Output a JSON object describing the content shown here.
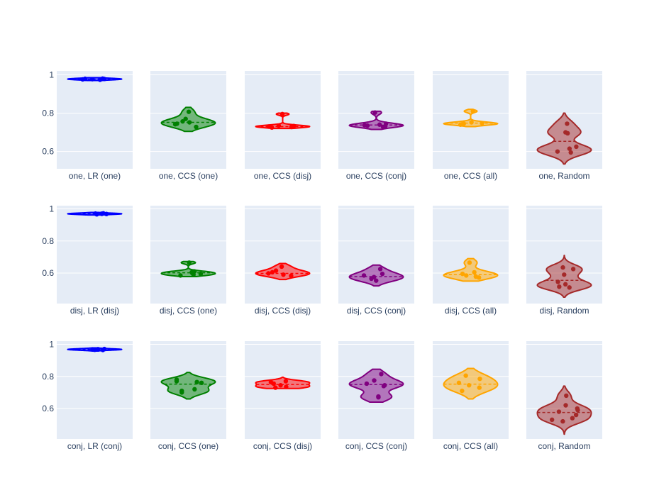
{
  "chart_data": {
    "type": "violin",
    "grid": true,
    "background_color": "#e5ecf6",
    "rows": [
      {
        "yticks": [
          0.6,
          0.8,
          1
        ],
        "ytick_labels": [
          "0.6",
          "0.8",
          "1"
        ],
        "ylim": [
          0.51,
          1.02
        ],
        "panels": [
          {
            "label": "one, LR (one)",
            "color": "#0000ff",
            "points": [
              0.974,
              0.976,
              0.977,
              0.978,
              0.979,
              0.98
            ],
            "mean": 0.977,
            "kde_range": [
              0.97,
              0.985
            ],
            "bw": 0.004
          },
          {
            "label": "one, CCS (one)",
            "color": "#008000",
            "points": [
              0.807,
              0.77,
              0.757,
              0.752,
              0.745,
              0.742,
              0.728
            ],
            "mean": 0.752,
            "kde_range": [
              0.705,
              0.83
            ],
            "bw": 0.018
          },
          {
            "label": "one, CCS (disj)",
            "color": "#ff0000",
            "points": [
              0.795,
              0.735,
              0.733,
              0.73,
              0.728,
              0.725
            ],
            "mean": 0.73,
            "kde_range": [
              0.72,
              0.8
            ],
            "bw": 0.006
          },
          {
            "label": "one, CCS (conj)",
            "color": "#800080",
            "points": [
              0.803,
              0.745,
              0.74,
              0.737,
              0.735,
              0.732,
              0.728
            ],
            "mean": 0.738,
            "kde_range": [
              0.715,
              0.81
            ],
            "bw": 0.01
          },
          {
            "label": "one, CCS (all)",
            "color": "#ffa500",
            "points": [
              0.81,
              0.752,
              0.748,
              0.745,
              0.742,
              0.74
            ],
            "mean": 0.748,
            "kde_range": [
              0.73,
              0.82
            ],
            "bw": 0.007
          },
          {
            "label": "one, Random",
            "color": "#a52a2a",
            "points": [
              0.745,
              0.7,
              0.695,
              0.625,
              0.615,
              0.6,
              0.595
            ],
            "mean": 0.653,
            "kde_range": [
              0.535,
              0.8
            ],
            "bw": 0.025
          }
        ]
      },
      {
        "yticks": [
          0.6,
          0.8,
          1
        ],
        "ytick_labels": [
          "0.6",
          "0.8",
          "1"
        ],
        "ylim": [
          0.41,
          1.02
        ],
        "panels": [
          {
            "label": "disj, LR (disj)",
            "color": "#0000ff",
            "points": [
              0.966,
              0.968,
              0.969,
              0.97,
              0.971,
              0.972
            ],
            "mean": 0.969,
            "kde_range": [
              0.962,
              0.978
            ],
            "bw": 0.004
          },
          {
            "label": "disj, CCS (one)",
            "color": "#008000",
            "points": [
              0.665,
              0.61,
              0.605,
              0.6,
              0.595,
              0.59,
              0.585
            ],
            "mean": 0.602,
            "kde_range": [
              0.578,
              0.672
            ],
            "bw": 0.008
          },
          {
            "label": "disj, CCS (disj)",
            "color": "#ff0000",
            "points": [
              0.64,
              0.615,
              0.605,
              0.598,
              0.59,
              0.583
            ],
            "mean": 0.598,
            "kde_range": [
              0.56,
              0.66
            ],
            "bw": 0.015
          },
          {
            "label": "disj, CCS (conj)",
            "color": "#800080",
            "points": [
              0.625,
              0.595,
              0.585,
              0.575,
              0.565,
              0.553
            ],
            "mean": 0.578,
            "kde_range": [
              0.52,
              0.65
            ],
            "bw": 0.02
          },
          {
            "label": "disj, CCS (all)",
            "color": "#ffa500",
            "points": [
              0.665,
              0.605,
              0.595,
              0.585,
              0.578,
              0.572
            ],
            "mean": 0.59,
            "kde_range": [
              0.55,
              0.69
            ],
            "bw": 0.02
          },
          {
            "label": "disj, Random",
            "color": "#a52a2a",
            "points": [
              0.635,
              0.625,
              0.59,
              0.545,
              0.53,
              0.515,
              0.51
            ],
            "mean": 0.555,
            "kde_range": [
              0.45,
              0.71
            ],
            "bw": 0.025
          }
        ]
      },
      {
        "yticks": [
          0.6,
          0.8,
          1
        ],
        "ytick_labels": [
          "0.6",
          "0.8",
          "1"
        ],
        "ylim": [
          0.41,
          1.02
        ],
        "panels": [
          {
            "label": "conj, LR (conj)",
            "color": "#0000ff",
            "points": [
              0.965,
              0.966,
              0.968,
              0.969,
              0.97,
              0.971
            ],
            "mean": 0.968,
            "kde_range": [
              0.958,
              0.978
            ],
            "bw": 0.004
          },
          {
            "label": "conj, CCS (one)",
            "color": "#008000",
            "points": [
              0.78,
              0.77,
              0.765,
              0.76,
              0.72,
              0.71,
              0.7
            ],
            "mean": 0.752,
            "kde_range": [
              0.66,
              0.825
            ],
            "bw": 0.022
          },
          {
            "label": "conj, CCS (disj)",
            "color": "#ff0000",
            "points": [
              0.77,
              0.765,
              0.755,
              0.745,
              0.735,
              0.73
            ],
            "mean": 0.75,
            "kde_range": [
              0.725,
              0.795
            ],
            "bw": 0.01
          },
          {
            "label": "conj, CCS (conj)",
            "color": "#800080",
            "points": [
              0.815,
              0.775,
              0.755,
              0.745,
              0.74,
              0.675,
              0.67
            ],
            "mean": 0.75,
            "kde_range": [
              0.64,
              0.845
            ],
            "bw": 0.025
          },
          {
            "label": "conj, CCS (all)",
            "color": "#ffa500",
            "points": [
              0.805,
              0.785,
              0.76,
              0.745,
              0.73,
              0.71
            ],
            "mean": 0.752,
            "kde_range": [
              0.66,
              0.85
            ],
            "bw": 0.03
          },
          {
            "label": "conj, Random",
            "color": "#a52a2a",
            "points": [
              0.68,
              0.62,
              0.6,
              0.59,
              0.58,
              0.56,
              0.54,
              0.53,
              0.52
            ],
            "mean": 0.575,
            "kde_range": [
              0.44,
              0.74
            ],
            "bw": 0.028
          }
        ]
      }
    ]
  }
}
